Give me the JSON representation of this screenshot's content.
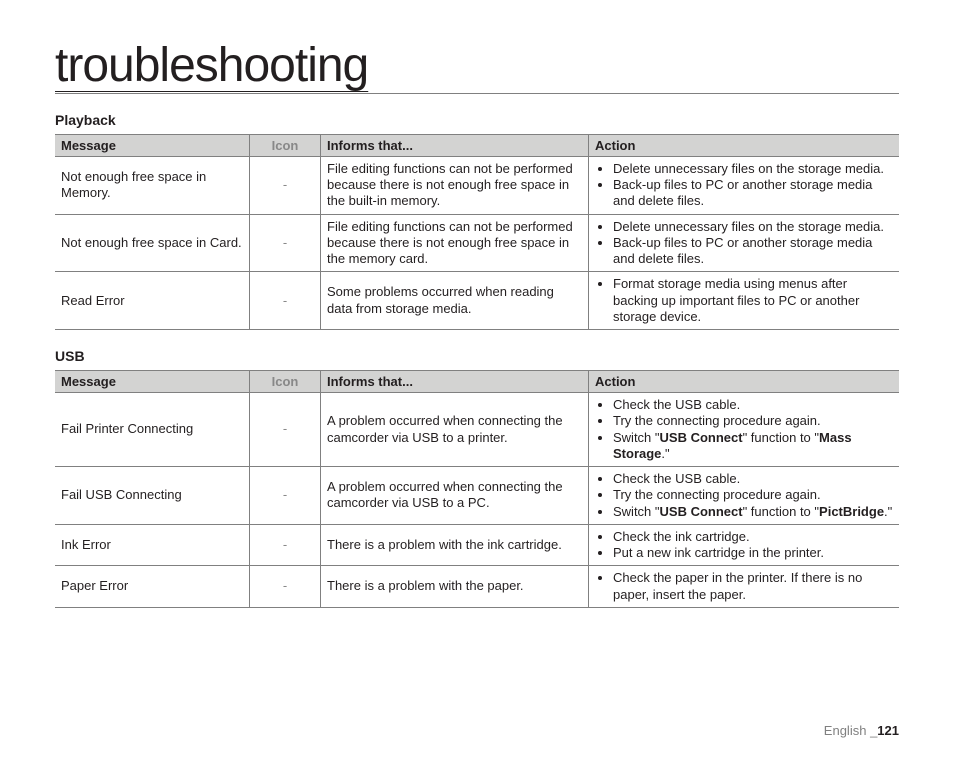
{
  "page": {
    "title": "troubleshooting",
    "footer_language": "English",
    "footer_separator": "_",
    "footer_pagenum": "121"
  },
  "sections": [
    {
      "title": "Playback",
      "columns": [
        "Message",
        "Icon",
        "Informs that...",
        "Action"
      ],
      "rows": [
        {
          "message": "Not enough free space in Memory.",
          "icon": "-",
          "informs": "File editing functions can not be performed because there is not enough free space in the built-in memory.",
          "actions": [
            "Delete unnecessary files on the storage media.",
            "Back-up files to PC or another storage media and delete files."
          ]
        },
        {
          "message": "Not enough free space in Card.",
          "icon": "-",
          "informs": "File editing functions can not be performed because there is not enough free space in the memory card.",
          "actions": [
            "Delete unnecessary files on the storage media.",
            "Back-up files to PC or another storage media and delete files."
          ]
        },
        {
          "message": "Read Error",
          "icon": "-",
          "informs": "Some problems occurred when reading data from storage media.",
          "actions": [
            "Format storage media using menus after backing up important files to PC or another storage device."
          ]
        }
      ]
    },
    {
      "title": "USB",
      "columns": [
        "Message",
        "Icon",
        "Informs that...",
        "Action"
      ],
      "rows": [
        {
          "message": "Fail Printer Connecting",
          "icon": "-",
          "informs": "A problem occurred when connecting the camcorder via USB to a printer.",
          "action_runs": [
            {
              "text": "Check the USB cable.",
              "bold": false,
              "newline": true
            },
            {
              "text": "Try the connecting procedure again.",
              "bold": false,
              "newline": true
            },
            {
              "text": "Switch \"",
              "bold": false,
              "newline": false
            },
            {
              "text": "USB Connect",
              "bold": true,
              "newline": false
            },
            {
              "text": "\" function to \"",
              "bold": false,
              "newline": false
            },
            {
              "text": "Mass Storage",
              "bold": true,
              "newline": false
            },
            {
              "text": ".\"",
              "bold": false,
              "newline": true
            }
          ],
          "action_bullets": 3
        },
        {
          "message": "Fail USB Connecting",
          "icon": "-",
          "informs": "A problem occurred when connecting the camcorder via USB to a PC.",
          "action_runs": [
            {
              "text": "Check the USB cable.",
              "bold": false,
              "newline": true
            },
            {
              "text": "Try the connecting procedure again.",
              "bold": false,
              "newline": true
            },
            {
              "text": "Switch \"",
              "bold": false,
              "newline": false
            },
            {
              "text": "USB Connect",
              "bold": true,
              "newline": false
            },
            {
              "text": "\" function to \"",
              "bold": false,
              "newline": false
            },
            {
              "text": "PictBridge",
              "bold": true,
              "newline": false
            },
            {
              "text": ".\"",
              "bold": false,
              "newline": true
            }
          ],
          "action_bullets": 3
        },
        {
          "message": "Ink Error",
          "icon": "-",
          "informs": "There is a problem with the ink cartridge.",
          "actions": [
            "Check the ink cartridge.",
            "Put a new ink cartridge in the printer."
          ]
        },
        {
          "message": "Paper Error",
          "icon": "-",
          "informs": "There is a problem with the paper.",
          "actions": [
            "Check the paper in the printer. If there is no paper, insert the paper."
          ]
        }
      ]
    }
  ]
}
